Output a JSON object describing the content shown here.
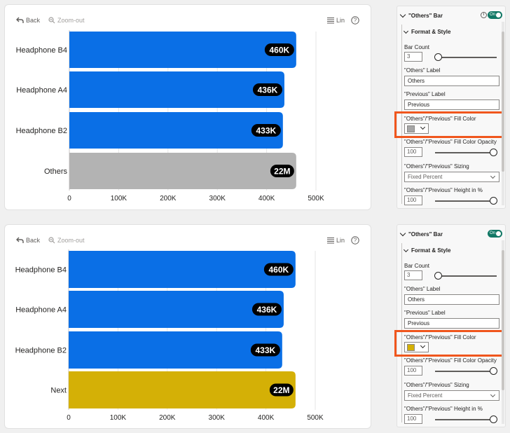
{
  "toolbar": {
    "back_label": "Back",
    "zoom_label": "Zoom-out",
    "lin_label": "Lin",
    "help_label": "?"
  },
  "charts": [
    {
      "categories": [
        "Headphone B4",
        "Headphone A4",
        "Headphone B2",
        "Others"
      ],
      "value_labels": [
        "460K",
        "436K",
        "433K",
        "22M"
      ],
      "colors": [
        "#0a6fe6",
        "#0a6fe6",
        "#0a6fe6",
        "#b3b3b3"
      ]
    },
    {
      "categories": [
        "Headphone B4",
        "Headphone A4",
        "Headphone B2",
        "Next"
      ],
      "value_labels": [
        "460K",
        "436K",
        "433K",
        "22M"
      ],
      "colors": [
        "#0a6fe6",
        "#0a6fe6",
        "#0a6fe6",
        "#d4b006"
      ]
    }
  ],
  "chart_data": [
    {
      "type": "bar",
      "orientation": "horizontal",
      "categories": [
        "Headphone B4",
        "Headphone A4",
        "Headphone B2",
        "Others"
      ],
      "values": [
        460000,
        436000,
        433000,
        460000
      ],
      "xlim": [
        0,
        500000
      ],
      "xticks": [
        "0",
        "100K",
        "200K",
        "300K",
        "400K",
        "500K"
      ],
      "grid": true
    },
    {
      "type": "bar",
      "orientation": "horizontal",
      "categories": [
        "Headphone B4",
        "Headphone A4",
        "Headphone B2",
        "Next"
      ],
      "values": [
        460000,
        436000,
        433000,
        460000
      ],
      "xlim": [
        0,
        500000
      ],
      "xticks": [
        "0",
        "100K",
        "200K",
        "300K",
        "400K",
        "500K"
      ],
      "grid": true
    }
  ],
  "panels": [
    {
      "title": "\"Others\" Bar",
      "toggle": "On",
      "section": "Format & Style",
      "bar_count_label": "Bar Count",
      "bar_count_value": "3",
      "others_label_label": "\"Others\" Label",
      "others_label_value": "Others",
      "previous_label_label": "\"Previous\" Label",
      "previous_label_value": "Previous",
      "fill_color_label": "\"Others\"/\"Previous\" Fill Color",
      "fill_color": "#a6a6a6",
      "opacity_label": "\"Others\"/\"Previous\" Fill Color Opacity",
      "opacity_value": "100",
      "sizing_label": "\"Others\"/\"Previous\" Sizing",
      "sizing_value": "Fixed Percent",
      "height_label": "\"Others\"/\"Previous\" Height in %",
      "height_value": "100"
    },
    {
      "title": "\"Others\" Bar",
      "toggle": "On",
      "section": "Format & Style",
      "bar_count_label": "Bar Count",
      "bar_count_value": "3",
      "others_label_label": "\"Others\" Label",
      "others_label_value": "Others",
      "previous_label_label": "\"Previous\" Label",
      "previous_label_value": "Previous",
      "fill_color_label": "\"Others\"/\"Previous\" Fill Color",
      "fill_color": "#d4b006",
      "opacity_label": "\"Others\"/\"Previous\" Fill Color Opacity",
      "opacity_value": "100",
      "sizing_label": "\"Others\"/\"Previous\" Sizing",
      "sizing_value": "Fixed Percent",
      "height_label": "\"Others\"/\"Previous\" Height in %",
      "height_value": "100"
    }
  ]
}
